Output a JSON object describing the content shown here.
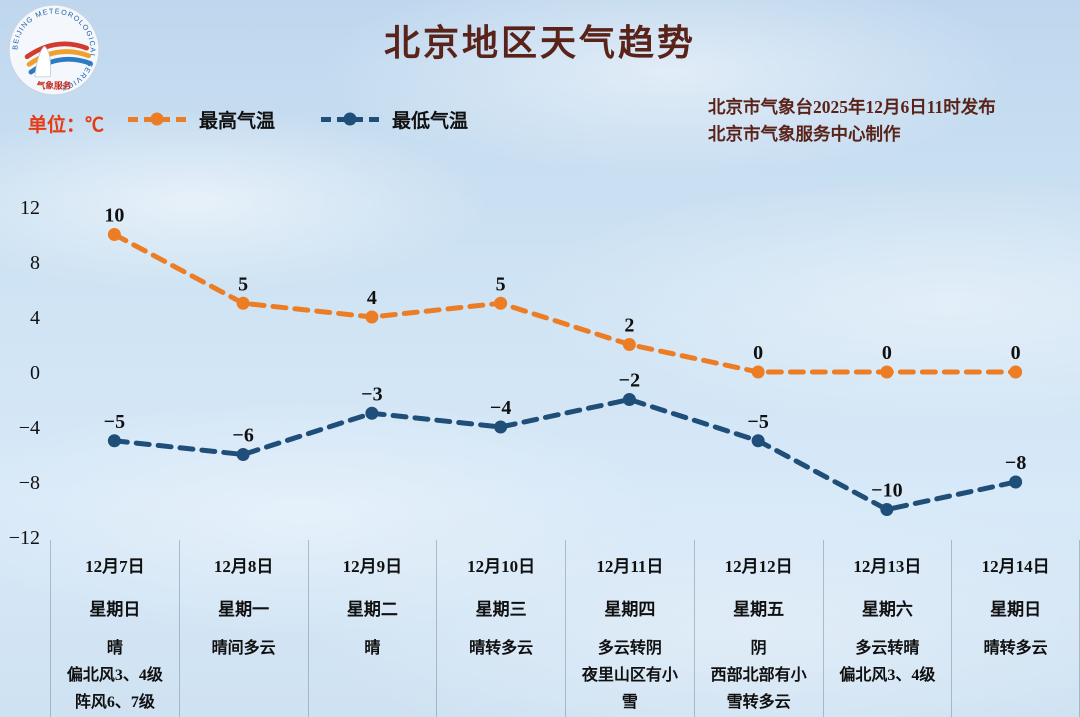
{
  "header": {
    "title": "北京地区天气趋势",
    "unit_label": "单位：℃",
    "issued_line1": "北京市气象台2025年12月6日11时发布",
    "issued_line2": "北京市气象服务中心制作"
  },
  "logo": {
    "ring_text": "BEIJING METEOROLOGICAL SERVICE",
    "bottom_text": "气象服务"
  },
  "colors": {
    "high_series": "#ed7d24",
    "low_series": "#1f4e79",
    "title_text": "#5a231a",
    "unit_text": "#e63c15",
    "value_label_text": "#101010"
  },
  "chart_data": {
    "type": "line",
    "title": "北京地区天气趋势",
    "unit": "℃",
    "grid": false,
    "legend_position": "top-left",
    "ylim": [
      -12,
      12
    ],
    "yticks": [
      12,
      8,
      4,
      0,
      -4,
      -8,
      -12
    ],
    "categories": [
      "12月7日",
      "12月8日",
      "12月9日",
      "12月10日",
      "12月11日",
      "12月12日",
      "12月13日",
      "12月14日"
    ],
    "weekdays": [
      "星期日",
      "星期一",
      "星期二",
      "星期三",
      "星期四",
      "星期五",
      "星期六",
      "星期日"
    ],
    "series": [
      {
        "name": "最高气温",
        "color": "#ed7d24",
        "style": "dashed",
        "values": [
          10,
          5,
          4,
          5,
          2,
          0,
          0,
          0
        ]
      },
      {
        "name": "最低气温",
        "color": "#1f4e79",
        "style": "dashed",
        "values": [
          -5,
          -6,
          -3,
          -4,
          -2,
          -5,
          -10,
          -8
        ]
      }
    ],
    "weather": [
      {
        "date": "12月7日",
        "weekday": "星期日",
        "desc": [
          "晴",
          "偏北风3、4级",
          "阵风6、7级"
        ]
      },
      {
        "date": "12月8日",
        "weekday": "星期一",
        "desc": [
          "晴间多云"
        ]
      },
      {
        "date": "12月9日",
        "weekday": "星期二",
        "desc": [
          "晴"
        ]
      },
      {
        "date": "12月10日",
        "weekday": "星期三",
        "desc": [
          "晴转多云"
        ]
      },
      {
        "date": "12月11日",
        "weekday": "星期四",
        "desc": [
          "多云转阴",
          "夜里山区有小",
          "雪"
        ]
      },
      {
        "date": "12月12日",
        "weekday": "星期五",
        "desc": [
          "阴",
          "西部北部有小",
          "雪转多云"
        ]
      },
      {
        "date": "12月13日",
        "weekday": "星期六",
        "desc": [
          "多云转晴",
          "偏北风3、4级"
        ]
      },
      {
        "date": "12月14日",
        "weekday": "星期日",
        "desc": [
          "晴转多云"
        ]
      }
    ]
  }
}
